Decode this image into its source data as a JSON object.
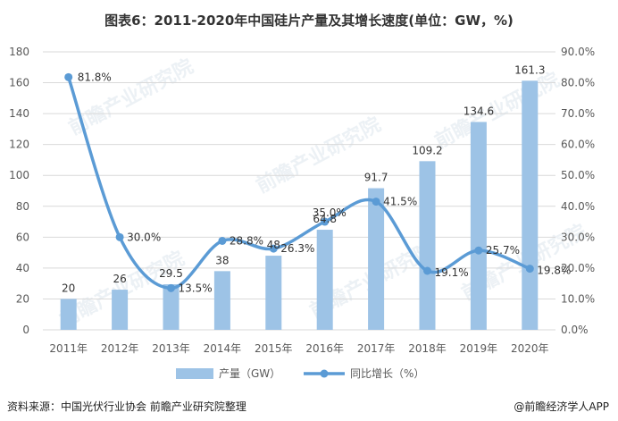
{
  "chart_data": {
    "type": "bar",
    "title": "图表6：2011-2020年中国硅片产量及其增长速度(单位：GW，%)",
    "categories": [
      "2011年",
      "2012年",
      "2013年",
      "2014年",
      "2015年",
      "2016年",
      "2017年",
      "2018年",
      "2019年",
      "2020年"
    ],
    "series": [
      {
        "name": "产量（GW）",
        "type": "bar",
        "axis": "left",
        "values": [
          20,
          26,
          29.5,
          38,
          48,
          64.8,
          91.7,
          109.2,
          134.6,
          161.3
        ],
        "labels": [
          "20",
          "26",
          "29.5",
          "38",
          "48",
          "64.8",
          "91.7",
          "109.2",
          "134.6",
          "161.3"
        ]
      },
      {
        "name": "同比增长（%）",
        "type": "line",
        "axis": "right",
        "values": [
          81.8,
          30.0,
          13.5,
          28.8,
          26.3,
          35.0,
          41.5,
          19.1,
          25.7,
          19.8
        ],
        "labels": [
          "81.8%",
          "30.0%",
          "13.5%",
          "28.8%",
          "26.3%",
          "35.0%",
          "41.5%",
          "19.1%",
          "25.7%",
          "19.8%"
        ]
      }
    ],
    "yleft": {
      "range": [
        0,
        180
      ],
      "ticks": [
        "0",
        "20",
        "40",
        "60",
        "80",
        "100",
        "120",
        "140",
        "160",
        "180"
      ]
    },
    "yright": {
      "range": [
        0,
        90
      ],
      "ticks": [
        "0.0%",
        "10.0%",
        "20.0%",
        "30.0%",
        "40.0%",
        "50.0%",
        "60.0%",
        "70.0%",
        "80.0%",
        "90.0%"
      ]
    },
    "grid": true,
    "legend": "bottom"
  },
  "colors": {
    "bar": "#9dc3e6",
    "line": "#5b9bd5",
    "grid": "#d9d9d9"
  },
  "source": "资料来源：中国光伏行业协会 前瞻产业研究院整理",
  "credit": "@前瞻经济学人APP",
  "watermark": "前瞻产业研究院"
}
